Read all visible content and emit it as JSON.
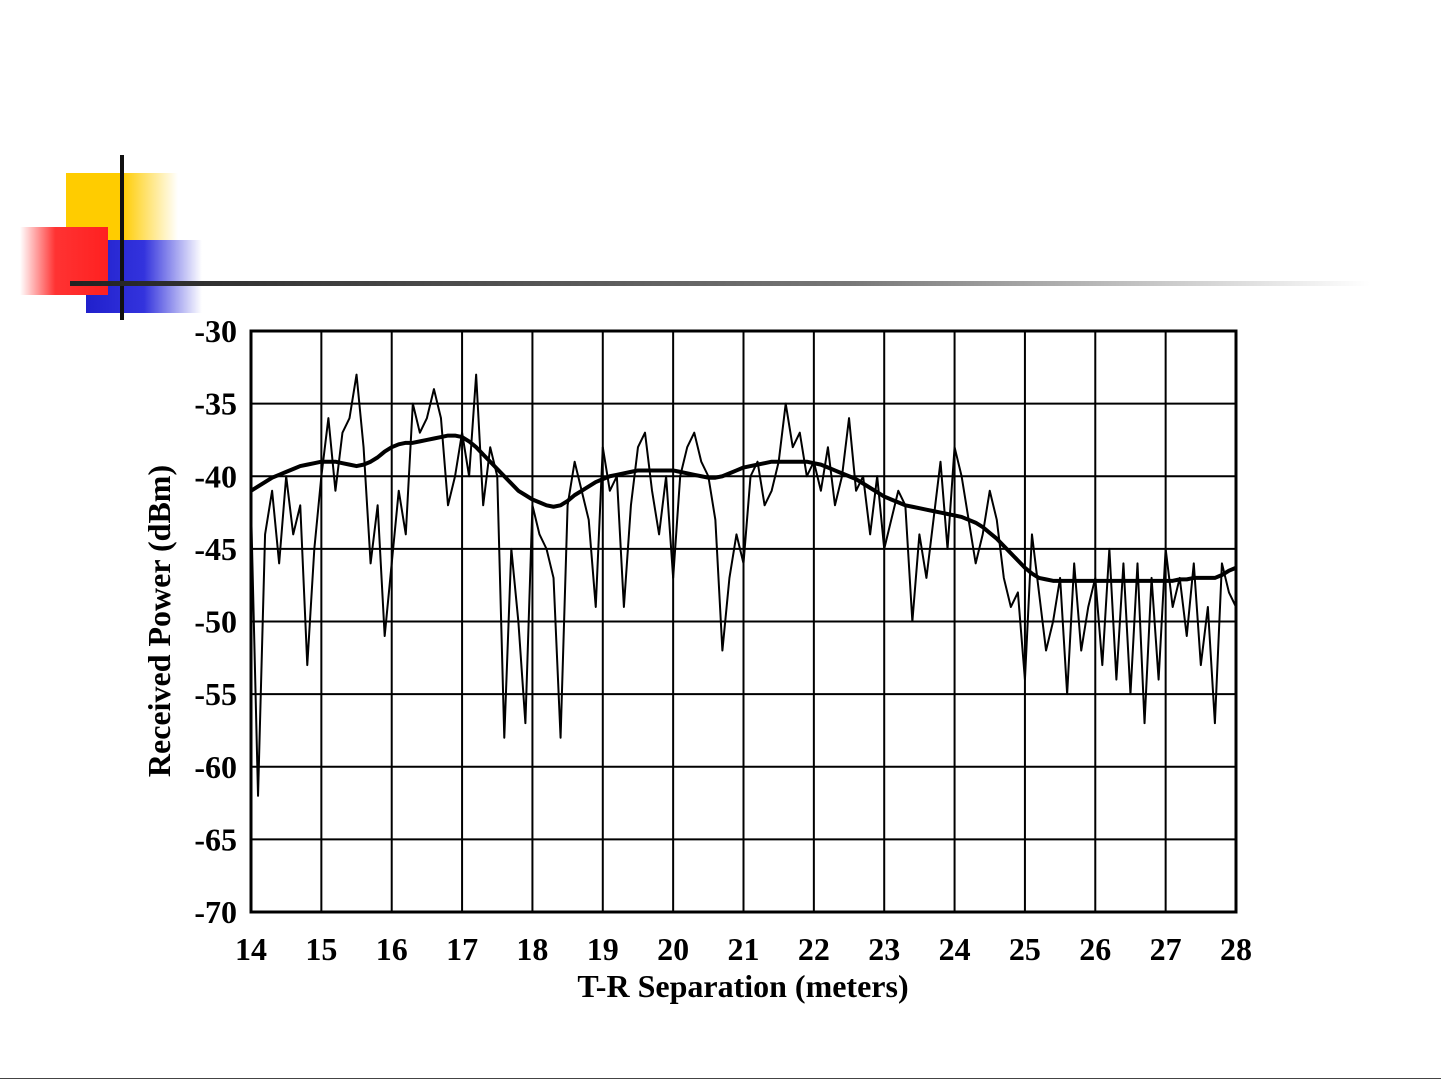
{
  "chart_data": {
    "type": "line",
    "xlabel": "T-R Separation (meters)",
    "ylabel": "Received Power (dBm)",
    "x": [
      14,
      14.1,
      14.2,
      14.3,
      14.4,
      14.5,
      14.6,
      14.7,
      14.8,
      14.9,
      15,
      15.1,
      15.2,
      15.3,
      15.4,
      15.5,
      15.6,
      15.7,
      15.8,
      15.9,
      16,
      16.1,
      16.2,
      16.3,
      16.4,
      16.5,
      16.6,
      16.7,
      16.8,
      16.9,
      17,
      17.1,
      17.2,
      17.3,
      17.4,
      17.5,
      17.6,
      17.7,
      17.8,
      17.9,
      18,
      18.1,
      18.2,
      18.3,
      18.4,
      18.5,
      18.6,
      18.7,
      18.8,
      18.9,
      19,
      19.1,
      19.2,
      19.3,
      19.4,
      19.5,
      19.6,
      19.7,
      19.8,
      19.9,
      20,
      20.1,
      20.2,
      20.3,
      20.4,
      20.5,
      20.6,
      20.7,
      20.8,
      20.9,
      21,
      21.1,
      21.2,
      21.3,
      21.4,
      21.5,
      21.6,
      21.7,
      21.8,
      21.9,
      22,
      22.1,
      22.2,
      22.3,
      22.4,
      22.5,
      22.6,
      22.7,
      22.8,
      22.9,
      23,
      23.1,
      23.2,
      23.3,
      23.4,
      23.5,
      23.6,
      23.7,
      23.8,
      23.9,
      24,
      24.1,
      24.2,
      24.3,
      24.4,
      24.5,
      24.6,
      24.7,
      24.8,
      24.9,
      25,
      25.1,
      25.2,
      25.3,
      25.4,
      25.5,
      25.6,
      25.7,
      25.8,
      25.9,
      26,
      26.1,
      26.2,
      26.3,
      26.4,
      26.5,
      26.6,
      26.7,
      26.8,
      26.9,
      27,
      27.1,
      27.2,
      27.3,
      27.4,
      27.5,
      27.6,
      27.7,
      27.8,
      27.9,
      28
    ],
    "series": [
      {
        "color": "#000000",
        "values": [
          -42,
          -62,
          -44,
          -41,
          -46,
          -40,
          -44,
          -42,
          -53,
          -45,
          -40,
          -36,
          -41,
          -37,
          -36,
          -33,
          -38,
          -46,
          -42,
          -51,
          -46,
          -41,
          -44,
          -35,
          -37,
          -36,
          -34,
          -36,
          -42,
          -40,
          -37,
          -40,
          -33,
          -42,
          -38,
          -40,
          -58,
          -45,
          -50,
          -57,
          -42,
          -44,
          -45,
          -47,
          -58,
          -42,
          -39,
          -41,
          -43,
          -49,
          -38,
          -41,
          -40,
          -49,
          -42,
          -38,
          -37,
          -41,
          -44,
          -40,
          -47,
          -40,
          -38,
          -37,
          -39,
          -40,
          -43,
          -52,
          -47,
          -44,
          -46,
          -40,
          -39,
          -42,
          -41,
          -39,
          -35,
          -38,
          -37,
          -40,
          -39,
          -41,
          -38,
          -42,
          -40,
          -36,
          -41,
          -40,
          -44,
          -40,
          -45,
          -43,
          -41,
          -42,
          -50,
          -44,
          -47,
          -43,
          -39,
          -45,
          -38,
          -40,
          -43,
          -46,
          -44,
          -41,
          -43,
          -47,
          -49,
          -48,
          -54,
          -44,
          -48,
          -52,
          -50,
          -47,
          -55,
          -46,
          -52,
          -49,
          -47,
          -53,
          -45,
          -54,
          -46,
          -55,
          -46,
          -57,
          -47,
          -54,
          -45,
          -49,
          -47,
          -51,
          -46,
          -53,
          -49,
          -57,
          -46,
          -48,
          -49
        ]
      },
      {
        "color": "#000000",
        "values": [
          -41,
          -40.7,
          -40.4,
          -40.1,
          -39.9,
          -39.7,
          -39.5,
          -39.3,
          -39.2,
          -39.1,
          -39,
          -39,
          -39,
          -39.1,
          -39.2,
          -39.3,
          -39.2,
          -39,
          -38.7,
          -38.3,
          -38,
          -37.8,
          -37.7,
          -37.7,
          -37.6,
          -37.5,
          -37.4,
          -37.3,
          -37.2,
          -37.2,
          -37.3,
          -37.6,
          -38,
          -38.5,
          -39,
          -39.5,
          -40,
          -40.5,
          -41,
          -41.3,
          -41.6,
          -41.8,
          -42,
          -42.1,
          -42,
          -41.7,
          -41.3,
          -41,
          -40.7,
          -40.4,
          -40.2,
          -40,
          -39.9,
          -39.8,
          -39.7,
          -39.6,
          -39.6,
          -39.6,
          -39.6,
          -39.6,
          -39.6,
          -39.7,
          -39.8,
          -39.9,
          -40,
          -40.1,
          -40.1,
          -40,
          -39.8,
          -39.6,
          -39.4,
          -39.3,
          -39.2,
          -39.1,
          -39,
          -39,
          -39,
          -39,
          -39,
          -39,
          -39.1,
          -39.2,
          -39.4,
          -39.6,
          -39.8,
          -40,
          -40.2,
          -40.5,
          -40.8,
          -41.1,
          -41.4,
          -41.6,
          -41.8,
          -42,
          -42.1,
          -42.2,
          -42.3,
          -42.4,
          -42.5,
          -42.6,
          -42.7,
          -42.8,
          -43,
          -43.2,
          -43.5,
          -43.9,
          -44.3,
          -44.8,
          -45.3,
          -45.8,
          -46.3,
          -46.7,
          -47,
          -47.1,
          -47.2,
          -47.2,
          -47.2,
          -47.2,
          -47.2,
          -47.2,
          -47.2,
          -47.2,
          -47.2,
          -47.2,
          -47.2,
          -47.2,
          -47.2,
          -47.2,
          -47.2,
          -47.2,
          -47.2,
          -47.2,
          -47.1,
          -47.1,
          -47,
          -47,
          -47,
          -47,
          -46.8,
          -46.5,
          -46.3
        ]
      }
    ],
    "xlim": [
      14,
      28
    ],
    "ylim": [
      -70,
      -30
    ],
    "xticks": [
      14,
      15,
      16,
      17,
      18,
      19,
      20,
      21,
      22,
      23,
      24,
      25,
      26,
      27,
      28
    ],
    "yticks": [
      -70,
      -65,
      -60,
      -55,
      -50,
      -45,
      -40,
      -35,
      -30
    ],
    "grid": true
  }
}
